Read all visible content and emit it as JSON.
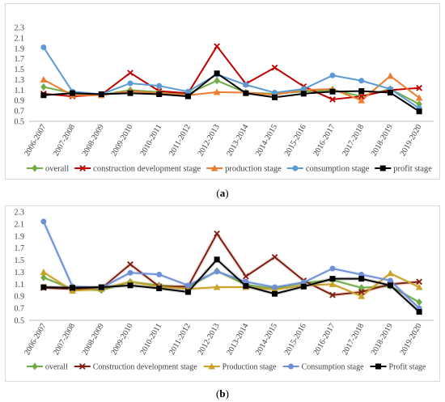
{
  "panels": [
    {
      "caption_letter": "a",
      "caption_open": "(",
      "caption_close": ")"
    },
    {
      "caption_letter": "b",
      "caption_open": "(",
      "caption_close": ")"
    }
  ],
  "chart_data": [
    {
      "type": "line",
      "categories": [
        "2006-2007",
        "2007-2008",
        "2008-2009",
        "2009-2010",
        "2010-2011",
        "2011-2012",
        "2012-2013",
        "2013-2014",
        "2014-2015",
        "2015-2016",
        "2016-2017",
        "2017-2018",
        "2018-2019",
        "2019-2020"
      ],
      "yticks": [
        "0.5",
        "0.7",
        "0.9",
        "1.1",
        "1.3",
        "1.5",
        "1.7",
        "1.9",
        "2.1",
        "2.3"
      ],
      "ylim": [
        0.5,
        2.3
      ],
      "grid": false,
      "legend_position": "bottom",
      "series": [
        {
          "name": "overall",
          "color": "#70ad47",
          "marker": "diamond",
          "values": [
            1.16,
            1.04,
            1.01,
            1.1,
            1.06,
            1.03,
            1.28,
            1.05,
            1.03,
            1.07,
            1.1,
            0.98,
            1.12,
            0.83
          ]
        },
        {
          "name": "construction development stage",
          "color": "#c00000",
          "marker": "x",
          "values": [
            1.03,
            0.98,
            1.01,
            1.43,
            1.08,
            1.04,
            1.94,
            1.22,
            1.53,
            1.17,
            0.92,
            0.98,
            1.1,
            1.14
          ]
        },
        {
          "name": "production stage",
          "color": "#ed7d31",
          "marker": "triangle",
          "values": [
            1.3,
            1.0,
            1.0,
            1.08,
            1.04,
            1.0,
            1.06,
            1.05,
            1.01,
            1.1,
            1.12,
            0.9,
            1.37,
            0.95
          ]
        },
        {
          "name": "consumption stage",
          "color": "#5b9bd5",
          "marker": "circle",
          "values": [
            1.92,
            1.07,
            1.02,
            1.23,
            1.18,
            1.07,
            1.4,
            1.2,
            1.05,
            1.12,
            1.38,
            1.28,
            1.12,
            0.75
          ]
        },
        {
          "name": "profit stage",
          "color": "#000000",
          "marker": "square",
          "values": [
            1.0,
            1.04,
            1.02,
            1.04,
            1.02,
            0.98,
            1.42,
            1.04,
            0.96,
            1.03,
            1.07,
            1.08,
            1.05,
            0.69
          ]
        }
      ]
    },
    {
      "type": "line",
      "categories": [
        "2006-2007",
        "2007-2008",
        "2008-2009",
        "2009-2010",
        "2010-2011",
        "2011-2012",
        "2012-2013",
        "2013-2014",
        "2014-2015",
        "2015-2016",
        "2016-2017",
        "2017-2018",
        "2018-2019",
        "2019-2020"
      ],
      "yticks": [
        "0.5",
        "0.7",
        "0.9",
        "1.1",
        "1.3",
        "1.5",
        "1.7",
        "1.9",
        "2.1",
        "2.3"
      ],
      "ylim": [
        0.5,
        2.3
      ],
      "grid": false,
      "legend_position": "bottom",
      "series": [
        {
          "name": "overall",
          "color": "#70ad47",
          "marker": "diamond",
          "values": [
            1.21,
            1.02,
            1.0,
            1.14,
            1.08,
            1.05,
            1.32,
            1.09,
            1.03,
            1.12,
            1.17,
            1.04,
            1.07,
            0.8
          ]
        },
        {
          "name": "Construction development stage",
          "color": "#7f1d0f",
          "marker": "x",
          "values": [
            1.04,
            1.02,
            1.03,
            1.43,
            1.06,
            1.06,
            1.94,
            1.23,
            1.55,
            1.16,
            0.92,
            0.97,
            1.1,
            1.14
          ]
        },
        {
          "name": "Production stage",
          "color": "#c9a227",
          "marker": "triangle",
          "values": [
            1.3,
            0.99,
            1.02,
            1.14,
            1.06,
            1.02,
            1.05,
            1.05,
            1.01,
            1.08,
            1.1,
            0.9,
            1.28,
            1.05
          ]
        },
        {
          "name": "Consumption stage",
          "color": "#6f8fd8",
          "marker": "circle",
          "values": [
            2.14,
            1.06,
            1.04,
            1.29,
            1.26,
            1.08,
            1.31,
            1.14,
            1.05,
            1.13,
            1.36,
            1.26,
            1.16,
            0.7
          ]
        },
        {
          "name": "Profit stage",
          "color": "#000000",
          "marker": "square",
          "values": [
            1.05,
            1.04,
            1.05,
            1.08,
            1.03,
            0.97,
            1.51,
            1.07,
            0.94,
            1.06,
            1.19,
            1.19,
            1.08,
            0.64
          ]
        }
      ]
    }
  ]
}
